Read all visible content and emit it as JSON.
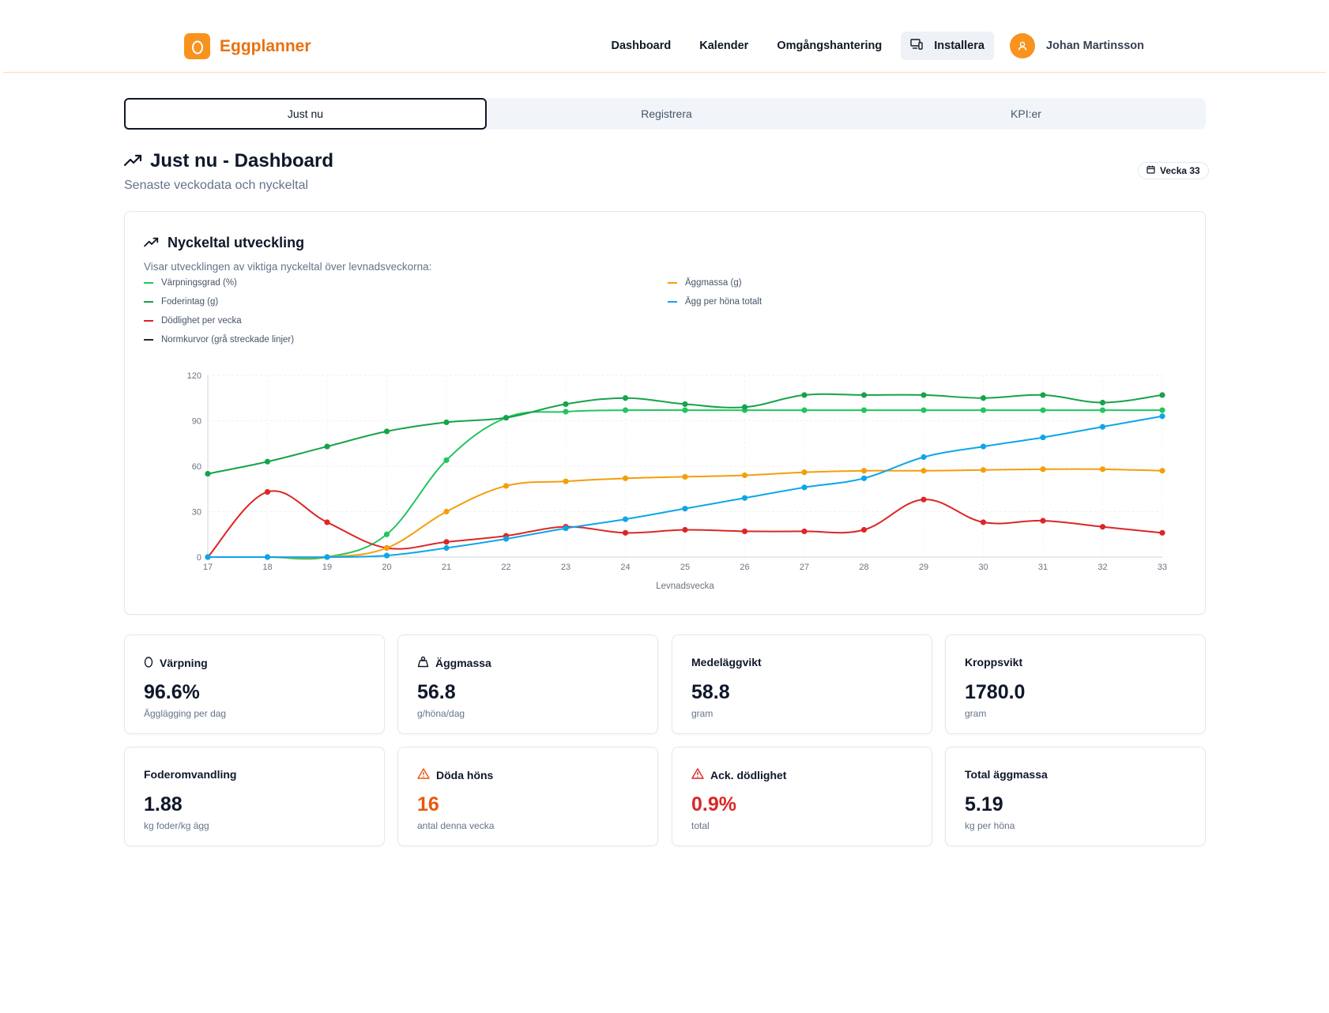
{
  "app": {
    "name": "Eggplanner"
  },
  "nav": {
    "items": [
      "Dashboard",
      "Kalender",
      "Omgångshantering"
    ],
    "install_label": "Installera",
    "user_name": "Johan Martinsson"
  },
  "tabs": [
    "Just nu",
    "Registrera",
    "KPI:er"
  ],
  "header": {
    "title": "Just nu - Dashboard",
    "subtitle": "Senaste veckodata och nyckeltal",
    "week_badge": "Vecka 33"
  },
  "chart_card": {
    "title": "Nyckeltal utveckling",
    "description": "Visar utvecklingen av viktiga nyckeltal över levnadsveckorna:"
  },
  "chart_data": {
    "type": "line",
    "xlabel": "Levnadsvecka",
    "ylabel": "",
    "x": [
      17,
      18,
      19,
      20,
      21,
      22,
      23,
      24,
      25,
      26,
      27,
      28,
      29,
      30,
      31,
      32,
      33
    ],
    "ylim": [
      0,
      120
    ],
    "yticks": [
      0,
      30,
      60,
      90,
      120
    ],
    "grid": true,
    "legend_note": "Normkurvor (grå streckade linjer)",
    "series": [
      {
        "name": "Värpningsgrad (%)",
        "color": "#22c55e",
        "values": [
          0,
          0,
          0,
          15,
          64,
          92,
          96,
          97,
          97,
          97,
          97,
          97,
          97,
          97,
          97,
          97,
          97
        ]
      },
      {
        "name": "Foderintag (g)",
        "color": "#16a34a",
        "values": [
          55,
          63,
          73,
          83,
          89,
          92,
          101,
          105,
          101,
          99,
          107,
          107,
          107,
          105,
          107,
          102,
          107
        ]
      },
      {
        "name": "Dödlighet per vecka",
        "color": "#dc2626",
        "values": [
          0,
          43,
          23,
          6,
          10,
          14,
          20,
          16,
          18,
          17,
          17,
          18,
          38,
          23,
          24,
          20,
          16
        ]
      },
      {
        "name": "Äggmassa (g)",
        "color": "#f59e0b",
        "values": [
          0,
          0,
          0,
          6,
          30,
          47,
          50,
          52,
          53,
          54,
          56,
          57,
          57,
          57.5,
          58,
          58,
          57
        ]
      },
      {
        "name": "Ägg per höna totalt",
        "color": "#0ea5e9",
        "values": [
          0,
          0,
          0,
          1,
          6,
          12,
          19,
          25,
          32,
          39,
          46,
          52,
          66,
          73,
          79,
          86,
          93
        ]
      }
    ]
  },
  "kpis": [
    {
      "label": "Värpning",
      "value": "96.6%",
      "unit": "Ägglägging per dag",
      "icon": "egg-icon",
      "tone": "normal"
    },
    {
      "label": "Äggmassa",
      "value": "56.8",
      "unit": "g/höna/dag",
      "icon": "weight-icon",
      "tone": "normal"
    },
    {
      "label": "Medeläggvikt",
      "value": "58.8",
      "unit": "gram",
      "icon": "",
      "tone": "normal"
    },
    {
      "label": "Kroppsvikt",
      "value": "1780.0",
      "unit": "gram",
      "icon": "",
      "tone": "normal"
    },
    {
      "label": "Foderomvandling",
      "value": "1.88",
      "unit": "kg foder/kg ägg",
      "icon": "",
      "tone": "normal"
    },
    {
      "label": "Döda höns",
      "value": "16",
      "unit": "antal denna vecka",
      "icon": "warning-icon",
      "tone": "orange"
    },
    {
      "label": "Ack. dödlighet",
      "value": "0.9%",
      "unit": "total",
      "icon": "warning-icon",
      "tone": "red"
    },
    {
      "label": "Total äggmassa",
      "value": "5.19",
      "unit": "kg per höna",
      "icon": "",
      "tone": "normal"
    }
  ]
}
